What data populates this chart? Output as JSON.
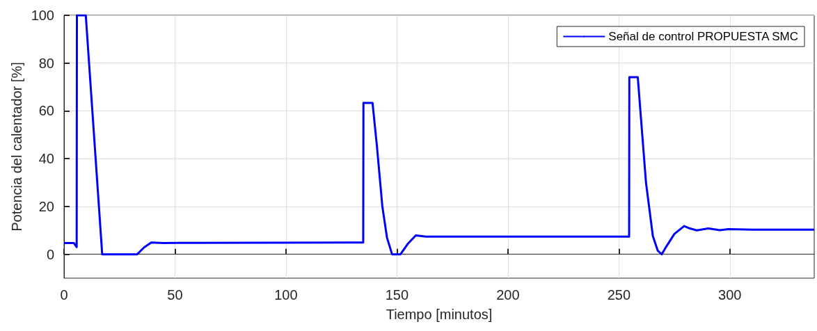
{
  "chart_data": {
    "type": "line",
    "xlabel": "Tiempo [minutos]",
    "ylabel": "Potencia del calentador [%]",
    "xlim": [
      0,
      338
    ],
    "xticks": [
      0,
      50,
      100,
      150,
      200,
      250,
      300
    ],
    "ylim": [
      -10,
      100
    ],
    "yticks": [
      0,
      20,
      40,
      60,
      80,
      100
    ],
    "grid": true,
    "legend": "top right",
    "marker": "none",
    "line_style": "solid",
    "series": [
      {
        "name": "Señal de control PROPUESTA SMC",
        "color": "#0000ff",
        "x": [
          0,
          4.4,
          5.7,
          5.8,
          9.8,
          13.5,
          17.2,
          33,
          36,
          39.3,
          45,
          60,
          134.8,
          134.9,
          139,
          141,
          143.4,
          145.5,
          147.8,
          151.6,
          155,
          158.5,
          163,
          180,
          254.6,
          254.7,
          258.5,
          262.2,
          265.3,
          267.5,
          269.3,
          271,
          275,
          279.4,
          282,
          285.1,
          290.3,
          295.5,
          299.4,
          310,
          338
        ],
        "values": [
          4.7,
          4.7,
          3,
          100,
          100,
          50,
          0,
          0,
          2.8,
          4.9,
          4.7,
          4.8,
          4.9,
          63.3,
          63.3,
          45,
          20.2,
          7,
          0,
          0,
          4.5,
          7.9,
          7.4,
          7.4,
          7.4,
          74.1,
          74.1,
          30,
          7.6,
          1.5,
          0,
          2.7,
          8.5,
          11.8,
          10.8,
          10,
          10.8,
          10.1,
          10.5,
          10.3,
          10.3
        ]
      }
    ]
  }
}
